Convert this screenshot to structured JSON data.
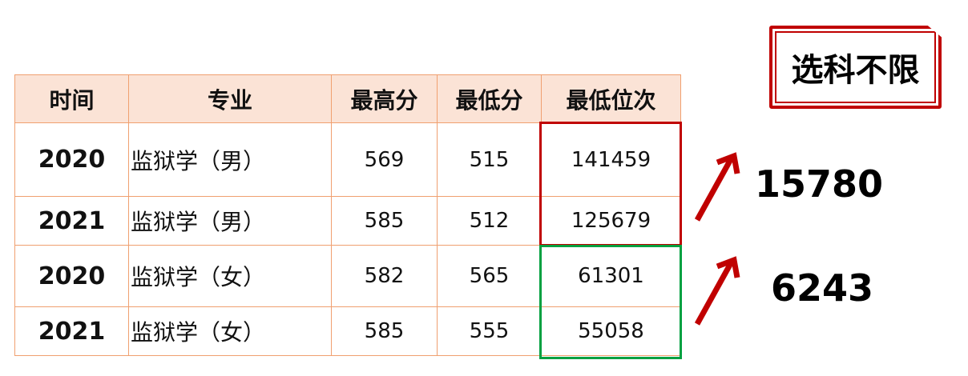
{
  "table": {
    "headers": [
      "时间",
      "专业",
      "最高分",
      "最低分",
      "最低位次"
    ],
    "rows": [
      [
        "2020",
        "监狱学（男）",
        "569",
        "515",
        "141459"
      ],
      [
        "2021",
        "监狱学（男）",
        "585",
        "512",
        "125679"
      ],
      [
        "2020",
        "监狱学（女）",
        "582",
        "565",
        "61301"
      ],
      [
        "2021",
        "监狱学（女）",
        "585",
        "555",
        "55058"
      ]
    ]
  },
  "badge": {
    "label": "选科不限"
  },
  "annotations": [
    {
      "value": "15780",
      "icon": "arrow-up-right-icon",
      "color": "#c00000"
    },
    {
      "value": "6243",
      "icon": "arrow-up-right-icon",
      "color": "#c00000"
    }
  ],
  "highlight_colors": {
    "male": "#c00000",
    "female": "#00a040"
  }
}
